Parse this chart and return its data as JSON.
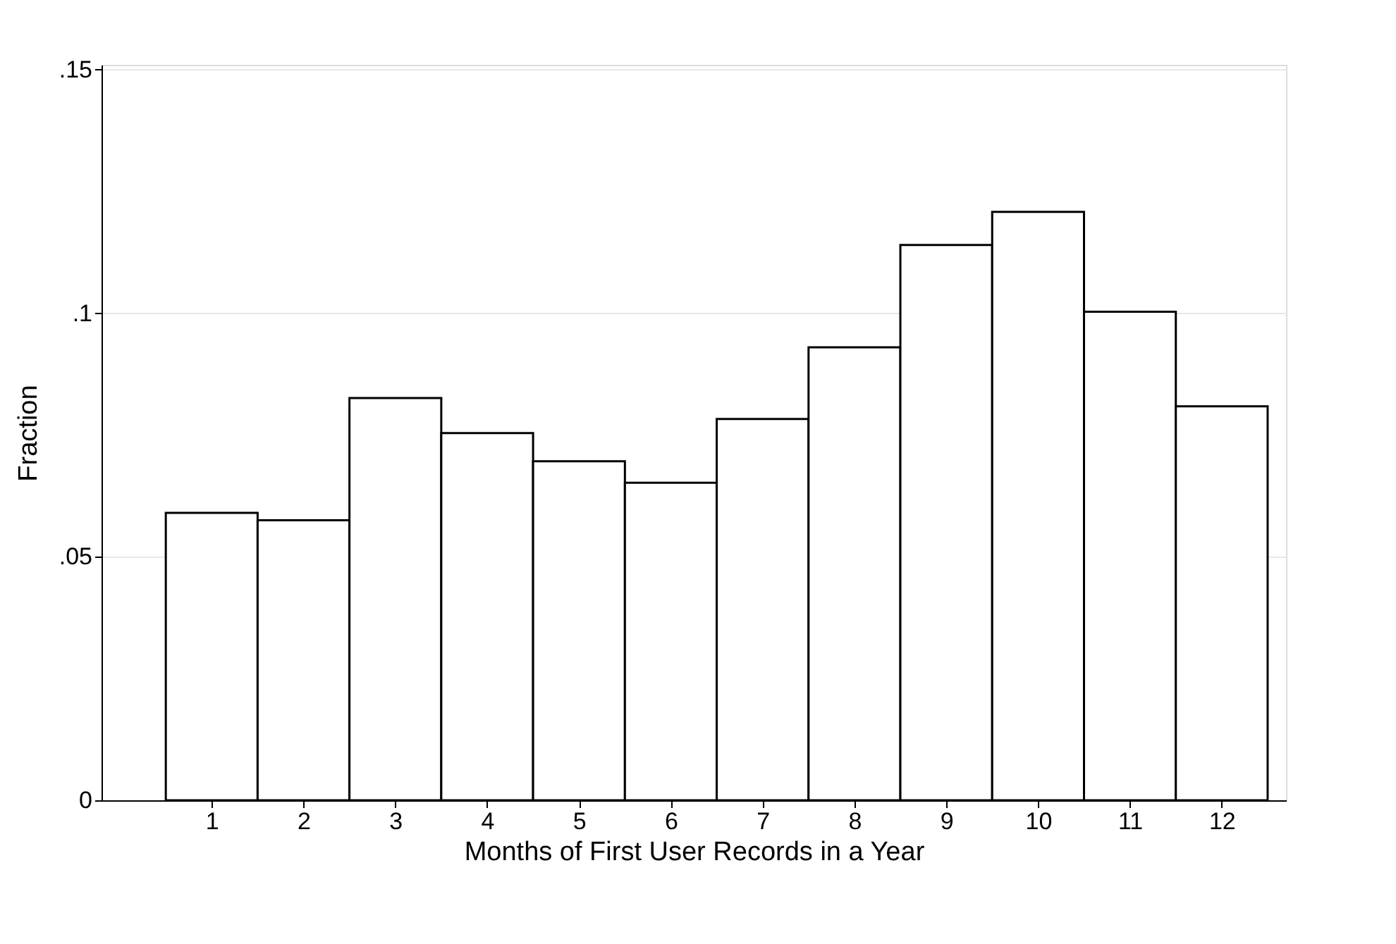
{
  "chart_data": {
    "type": "histogram",
    "xlabel": "Months of First User Records in a Year",
    "ylabel": "Fraction",
    "bins": [
      0.5,
      1.5,
      2.5,
      3.5,
      4.5,
      5.5,
      6.5,
      7.5,
      8.5,
      9.5,
      10.5,
      11.5,
      12.5
    ],
    "values": [
      0.059,
      0.0575,
      0.0826,
      0.0754,
      0.0696,
      0.0652,
      0.0783,
      0.093,
      0.114,
      0.1208,
      0.1003,
      0.0809
    ],
    "color": "#ffffff",
    "xlim": [
      -0.2,
      12.7
    ],
    "xticks": [
      1,
      2,
      3,
      4,
      5,
      6,
      7,
      8,
      9,
      10,
      11,
      12
    ],
    "ylim": [
      0,
      0.151
    ],
    "yticks": [
      0,
      {
        "value": 0.05,
        "label": ".05"
      },
      {
        "value": 0.1,
        "label": ".1"
      },
      {
        "value": 0.15,
        "label": ".15"
      }
    ],
    "grid": "y"
  }
}
